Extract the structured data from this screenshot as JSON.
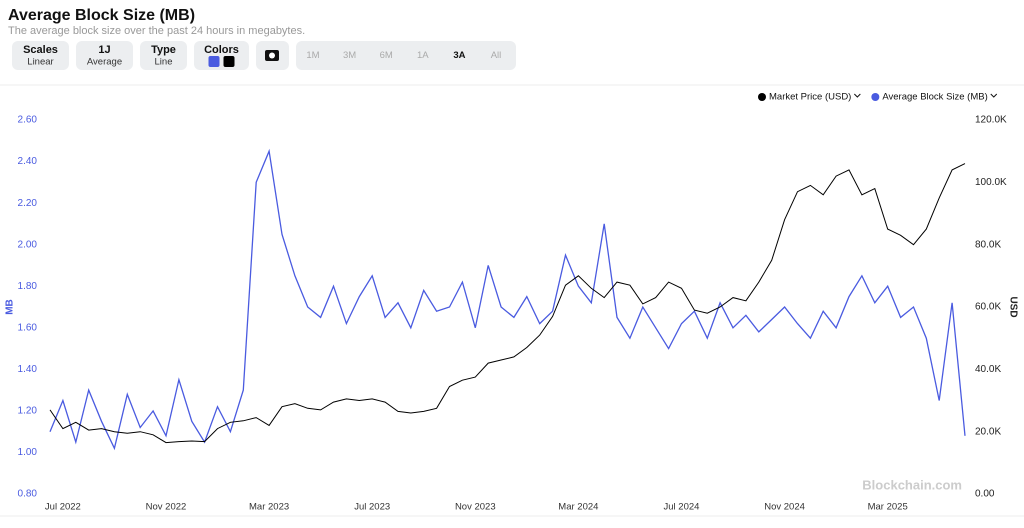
{
  "header": {
    "title": "Average Block Size (MB)",
    "subtitle": "The average block size over the past 24 hours in megabytes."
  },
  "controls": [
    {
      "label": "Scales",
      "value": "Linear"
    },
    {
      "label": "1J",
      "value": "Average"
    },
    {
      "label": "Type",
      "value": "Line"
    },
    {
      "label": "Colors"
    }
  ],
  "ranges": [
    "1M",
    "3M",
    "6M",
    "1A",
    "3A",
    "All"
  ],
  "active_range": 4,
  "watermark": "Blockchain.com",
  "chart_data": {
    "type": "line",
    "categories": [
      null,
      "Jul 2022",
      null,
      null,
      null,
      null,
      null,
      null,
      null,
      "Nov 2022",
      null,
      null,
      null,
      null,
      null,
      null,
      null,
      "Mar 2023",
      null,
      null,
      null,
      null,
      null,
      null,
      null,
      "Jul 2023",
      null,
      null,
      null,
      null,
      null,
      null,
      null,
      "Nov 2023",
      null,
      null,
      null,
      null,
      null,
      null,
      null,
      "Mar 2024",
      null,
      null,
      null,
      null,
      null,
      null,
      null,
      "Jul 2024",
      null,
      null,
      null,
      null,
      null,
      null,
      null,
      "Nov 2024",
      null,
      null,
      null,
      null,
      null,
      null,
      null,
      "Mar 2025",
      null,
      null,
      null,
      null,
      null,
      null
    ],
    "series": [
      {
        "name": "Market Price (USD)",
        "color": "#000000",
        "axis": "y2",
        "values": [
          27000,
          21000,
          23000,
          20500,
          21000,
          20000,
          19500,
          20000,
          19000,
          16500,
          16800,
          17000,
          16800,
          21000,
          23000,
          23500,
          24500,
          22000,
          28000,
          29000,
          27500,
          27000,
          29500,
          30500,
          30000,
          30500,
          29500,
          26500,
          26000,
          26500,
          27500,
          34500,
          36500,
          37500,
          42000,
          43000,
          44000,
          47000,
          51000,
          57000,
          67000,
          70000,
          66000,
          63000,
          68000,
          67000,
          61000,
          63000,
          68000,
          66000,
          59000,
          58000,
          60000,
          63000,
          62000,
          68000,
          75000,
          88000,
          97000,
          99000,
          96000,
          102000,
          104000,
          96000,
          98000,
          85000,
          83000,
          80000,
          85000,
          95000,
          104000,
          106000
        ]
      },
      {
        "name": "Average Block Size (MB)",
        "color": "#4a5be0",
        "values": [
          1.1,
          1.25,
          1.05,
          1.3,
          1.15,
          1.02,
          1.28,
          1.12,
          1.2,
          1.08,
          1.35,
          1.15,
          1.05,
          1.22,
          1.1,
          1.3,
          2.3,
          2.45,
          2.05,
          1.85,
          1.7,
          1.65,
          1.8,
          1.62,
          1.75,
          1.85,
          1.65,
          1.72,
          1.6,
          1.78,
          1.68,
          1.7,
          1.82,
          1.6,
          1.9,
          1.7,
          1.65,
          1.75,
          1.62,
          1.68,
          1.95,
          1.8,
          1.72,
          2.1,
          1.65,
          1.55,
          1.7,
          1.6,
          1.5,
          1.62,
          1.68,
          1.55,
          1.72,
          1.6,
          1.66,
          1.58,
          1.64,
          1.7,
          1.62,
          1.55,
          1.68,
          1.6,
          1.75,
          1.85,
          1.72,
          1.8,
          1.65,
          1.7,
          1.55,
          1.25,
          1.72,
          1.08
        ]
      }
    ],
    "ylabel": "MB",
    "y2label": "USD",
    "ylim": [
      0.8,
      2.6
    ],
    "yticks": [
      {
        "value": 0.8,
        "label": "0.80"
      },
      {
        "value": 1.0,
        "label": "1.00"
      },
      {
        "value": 1.2,
        "label": "1.20"
      },
      {
        "value": 1.4,
        "label": "1.40"
      },
      {
        "value": 1.6,
        "label": "1.60"
      },
      {
        "value": 1.8,
        "label": "1.80"
      },
      {
        "value": 2.0,
        "label": "2.00"
      },
      {
        "value": 2.2,
        "label": "2.20"
      },
      {
        "value": 2.4,
        "label": "2.40"
      },
      {
        "value": 2.6,
        "label": "2.60"
      }
    ],
    "y2lim": [
      0,
      120000
    ],
    "y2ticks": [
      {
        "value": 0,
        "label": "0.00"
      },
      {
        "value": 20000,
        "label": "20.0K"
      },
      {
        "value": 40000,
        "label": "40.0K"
      },
      {
        "value": 60000,
        "label": "60.0K"
      },
      {
        "value": 80000,
        "label": "80.0K"
      },
      {
        "value": 100000,
        "label": "100.0K"
      },
      {
        "value": 120000,
        "label": "120.0K"
      }
    ],
    "ycolor": "#4a5be0",
    "y2color": "#222222",
    "legend": "top-right",
    "grid": false
  }
}
